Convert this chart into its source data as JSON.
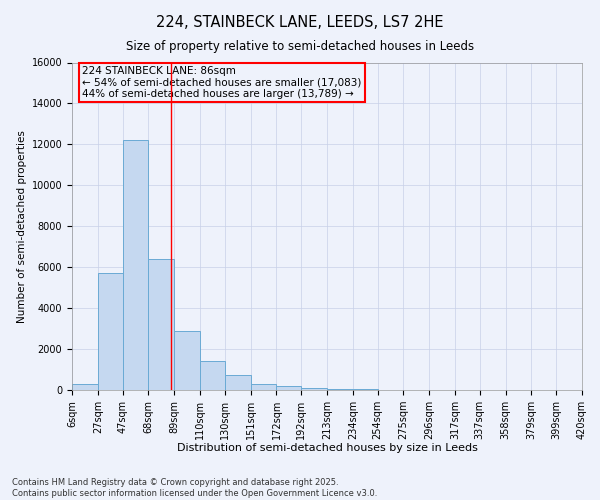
{
  "title_line1": "224, STAINBECK LANE, LEEDS, LS7 2HE",
  "title_line2": "Size of property relative to semi-detached houses in Leeds",
  "xlabel": "Distribution of semi-detached houses by size in Leeds",
  "ylabel": "Number of semi-detached properties",
  "bar_color": "#c5d8f0",
  "bar_edge_color": "#6aaad4",
  "vline_color": "red",
  "vline_x": 86,
  "annotation_title": "224 STAINBECK LANE: 86sqm",
  "annotation_line1": "← 54% of semi-detached houses are smaller (17,083)",
  "annotation_line2": "44% of semi-detached houses are larger (13,789) →",
  "bin_edges": [
    6,
    27,
    47,
    68,
    89,
    110,
    130,
    151,
    172,
    192,
    213,
    234,
    254,
    275,
    296,
    317,
    337,
    358,
    379,
    399,
    420
  ],
  "bar_heights": [
    280,
    5700,
    12200,
    6400,
    2900,
    1400,
    750,
    300,
    200,
    100,
    70,
    40,
    20,
    15,
    10,
    5,
    3,
    2,
    1,
    1
  ],
  "ylim": [
    0,
    16000
  ],
  "yticks": [
    0,
    2000,
    4000,
    6000,
    8000,
    10000,
    12000,
    14000,
    16000
  ],
  "background_color": "#eef2fb",
  "grid_color": "#c8d0e8",
  "footnote_line1": "Contains HM Land Registry data © Crown copyright and database right 2025.",
  "footnote_line2": "Contains public sector information licensed under the Open Government Licence v3.0.",
  "title_fontsize": 10.5,
  "subtitle_fontsize": 8.5,
  "xlabel_fontsize": 8,
  "ylabel_fontsize": 7.5,
  "tick_fontsize": 7,
  "footnote_fontsize": 6,
  "annotation_fontsize": 7.5,
  "annotation_box_color": "red"
}
